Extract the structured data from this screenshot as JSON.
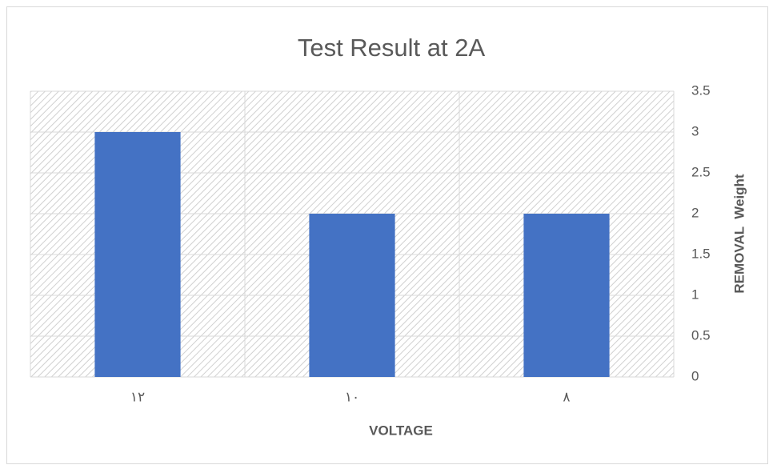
{
  "chart_data": {
    "type": "bar",
    "title": "Test Result at 2A",
    "categories": [
      "١٢",
      "١٠",
      "٨"
    ],
    "values": [
      3,
      2,
      2
    ],
    "color": "#4472c4",
    "x_label": "VOLTAGE",
    "y_label": "REMOVAL  Weight",
    "ylim": [
      0,
      3.5
    ],
    "yticks": [
      0,
      0.5,
      1,
      1.5,
      2,
      2.5,
      3,
      3.5
    ],
    "grid": true
  }
}
